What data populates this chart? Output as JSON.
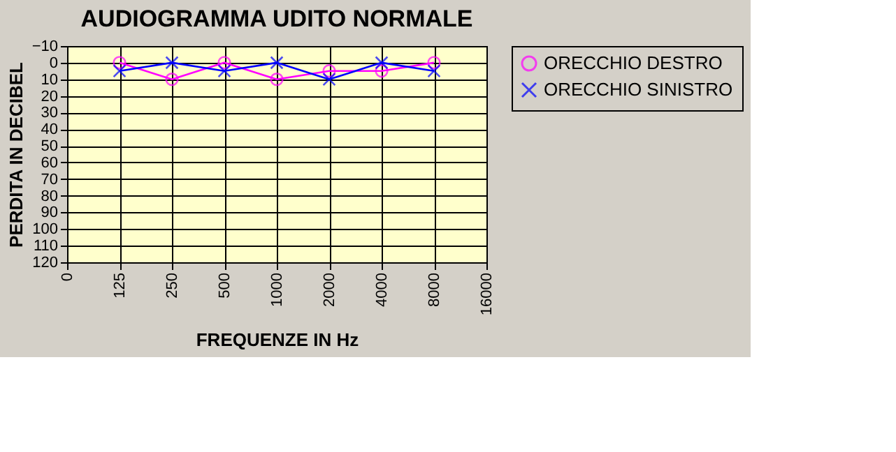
{
  "chart_data": {
    "type": "line",
    "title": "AUDIOGRAMMA UDITO NORMALE",
    "xlabel": "FREQUENZE IN Hz",
    "ylabel": "PERDITA IN DECIBEL",
    "categories": [
      "0",
      "125",
      "250",
      "500",
      "1000",
      "2000",
      "4000",
      "8000",
      "16000"
    ],
    "series": [
      {
        "name": "ORECCHIO DESTRO",
        "color": "#ff00ff",
        "marker": "circle",
        "values": [
          null,
          0,
          10,
          0,
          10,
          5,
          5,
          0,
          null
        ]
      },
      {
        "name": "ORECCHIO SINISTRO",
        "color": "#0000ff",
        "marker": "cross",
        "values": [
          null,
          5,
          0,
          5,
          0,
          10,
          0,
          5,
          null
        ]
      }
    ],
    "ylim": [
      120,
      -10
    ],
    "yticks": [
      -10,
      0,
      10,
      20,
      30,
      40,
      50,
      60,
      70,
      80,
      90,
      100,
      110,
      120
    ],
    "grid": true,
    "legend": "right"
  }
}
